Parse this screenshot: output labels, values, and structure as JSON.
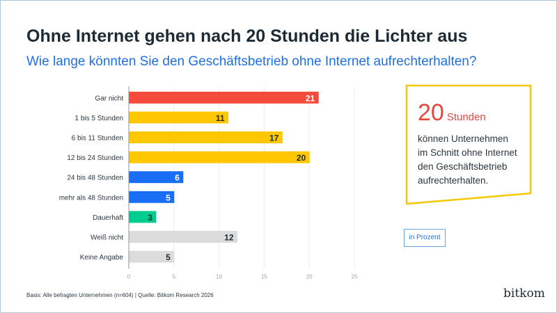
{
  "title": "Ohne Internet gehen nach 20 Stunden die Lichter aus",
  "subtitle": "Wie lange könnten Sie den Geschäftsbetrieb ohne Internet aufrechterhalten?",
  "callout": {
    "number": "20",
    "unit": "Stunden",
    "lines": [
      "können Unternehmen",
      "im Schnitt ohne Internet",
      "den Geschäftsbetrieb",
      "aufrechterhalten."
    ],
    "border_color": "#f5c800",
    "accent_color": "#e8453c"
  },
  "unit_label": "in Prozent",
  "footer": "Basis: Alle befragten Unternehmen (n=604) | Quelle: Bitkom Research 2026",
  "logo": "bitkom",
  "chart_data": {
    "type": "bar",
    "orientation": "horizontal",
    "categories": [
      "Gar nicht",
      "1 bis 5 Stunden",
      "6 bis 11 Stunden",
      "12 bis 24 Stunden",
      "24 bis 48 Stunden",
      "mehr als 48 Stunden",
      "Dauerhaft",
      "Weiß nicht",
      "Keine Angabe"
    ],
    "values": [
      21,
      11,
      17,
      20,
      6,
      5,
      3,
      12,
      5
    ],
    "colors": [
      "#f44b3c",
      "#fec700",
      "#fec700",
      "#fec700",
      "#1a6ef5",
      "#1a6ef5",
      "#00cc8f",
      "#dcdcdc",
      "#dcdcdc"
    ],
    "label_colors": [
      "#ffffff",
      "#1c2b36",
      "#1c2b36",
      "#1c2b36",
      "#ffffff",
      "#ffffff",
      "#1c2b36",
      "#1c2b36",
      "#1c2b36"
    ],
    "xlim": [
      0,
      25
    ],
    "xticks": [
      0,
      5,
      10,
      15,
      20,
      25
    ],
    "grid": true,
    "legend": "none"
  }
}
